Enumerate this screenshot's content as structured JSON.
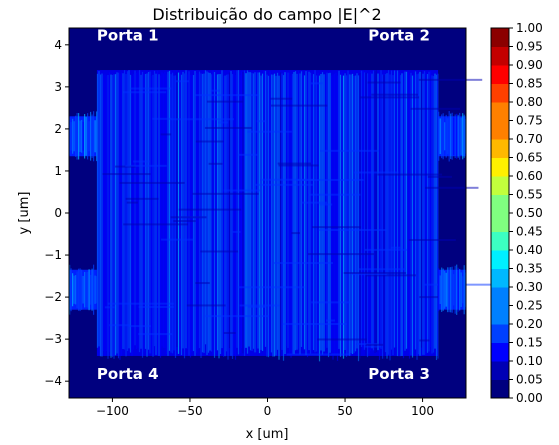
{
  "chart_data": {
    "type": "heatmap",
    "title": "Distribuição do campo |E|^2",
    "xlabel": "x [um]",
    "ylabel": "y [um]",
    "xlim": [
      -128,
      128
    ],
    "ylim": [
      -4.4,
      4.4
    ],
    "x_ticks": [
      -100,
      -50,
      0,
      50,
      100
    ],
    "x_tick_labels": [
      "−100",
      "−50",
      "0",
      "50",
      "100"
    ],
    "y_ticks": [
      -4,
      -3,
      -2,
      -1,
      0,
      1,
      2,
      3,
      4
    ],
    "y_tick_labels": [
      "−4",
      "−3",
      "−2",
      "−1",
      "0",
      "1",
      "2",
      "3",
      "4"
    ],
    "colorbar": {
      "min": 0.0,
      "max": 1.0,
      "ticks": [
        "0.00",
        "0.05",
        "0.10",
        "0.15",
        "0.20",
        "0.25",
        "0.30",
        "0.35",
        "0.40",
        "0.45",
        "0.50",
        "0.55",
        "0.60",
        "0.65",
        "0.70",
        "0.75",
        "0.80",
        "0.85",
        "0.90",
        "0.95",
        "1.00"
      ]
    },
    "regions": {
      "background_value": 0.05,
      "central_region": {
        "x": [
          -110,
          110
        ],
        "y": [
          -3.4,
          3.4
        ],
        "value_range": [
          0.08,
          0.3
        ]
      },
      "waveguides": [
        {
          "x": [
            -128,
            -110
          ],
          "y": [
            1.35,
            2.3
          ],
          "value_range": [
            0.15,
            0.3
          ]
        },
        {
          "x": [
            -128,
            -110
          ],
          "y": [
            -2.3,
            -1.35
          ],
          "value_range": [
            0.15,
            0.3
          ]
        },
        {
          "x": [
            110,
            128
          ],
          "y": [
            1.35,
            2.3
          ],
          "value_range": [
            0.15,
            0.3
          ]
        },
        {
          "x": [
            110,
            128
          ],
          "y": [
            -2.3,
            -1.35
          ],
          "value_range": [
            0.15,
            0.3
          ]
        }
      ]
    },
    "annotations": [
      {
        "text": "Porta 1",
        "x": -110,
        "y": 4.1
      },
      {
        "text": "Porta 2",
        "x": 65,
        "y": 4.1
      },
      {
        "text": "Porta 4",
        "x": -110,
        "y": -3.95
      },
      {
        "text": "Porta 3",
        "x": 65,
        "y": -3.95
      }
    ],
    "colormap": [
      "#00007f",
      "#0000b4",
      "#0000ff",
      "#0040ff",
      "#0080ff",
      "#00b8ff",
      "#00f0ff",
      "#3cffc2",
      "#80ff80",
      "#c2ff3c",
      "#fff000",
      "#ffb800",
      "#ff8000",
      "#ff4000",
      "#ff0000",
      "#c40000",
      "#8b0000"
    ]
  }
}
